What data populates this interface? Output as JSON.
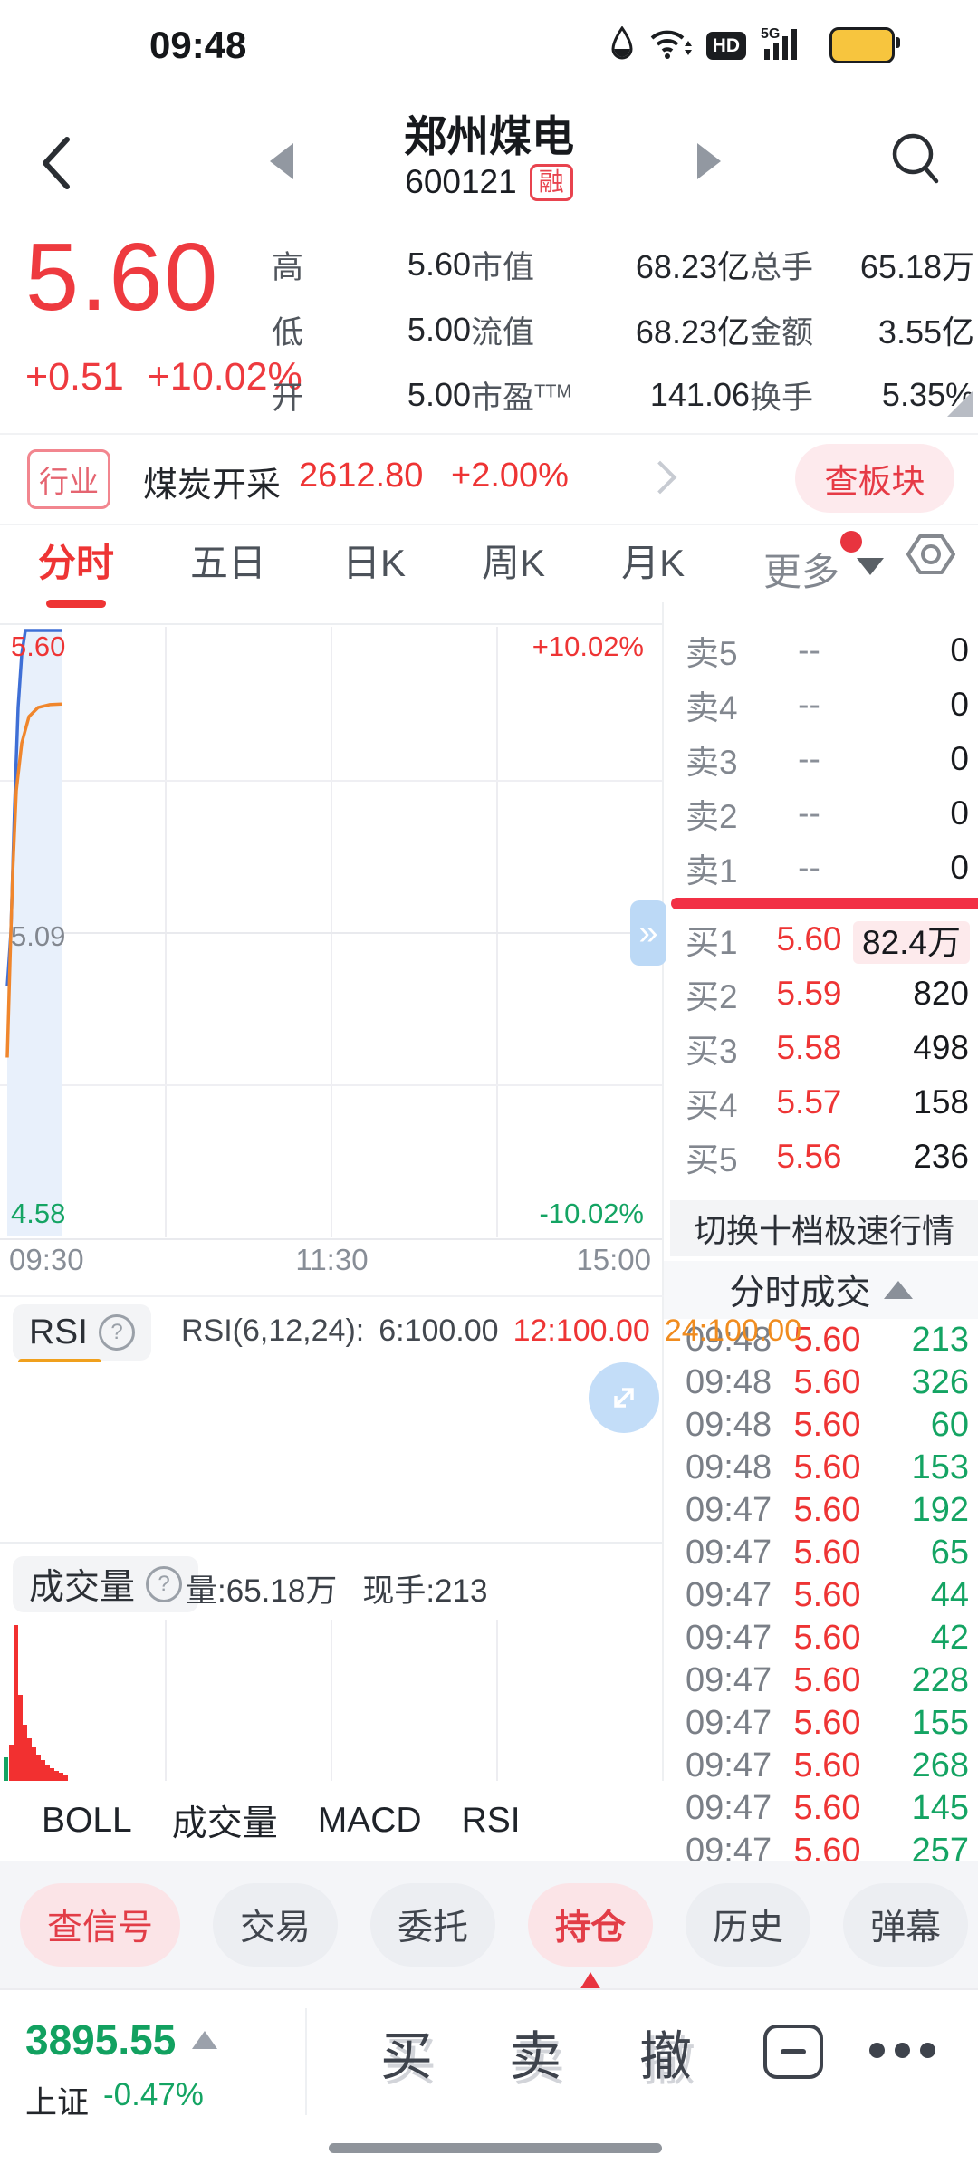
{
  "status_bar": {
    "time": "09:48",
    "icons": [
      "drop-icon",
      "wifi-icon",
      "hd-icon",
      "signal-5g-icon",
      "battery-icon"
    ]
  },
  "header": {
    "title": "郑州煤电",
    "code": "600121",
    "margin_badge": "融"
  },
  "quote": {
    "price": "5.60",
    "change": "+0.51",
    "change_pct": "+10.02%",
    "stats": [
      {
        "label": "高",
        "value": "5.60",
        "vc": "red"
      },
      {
        "label": "市值",
        "value": "68.23亿"
      },
      {
        "label": "总手",
        "value": "65.18万"
      },
      {
        "label": "低",
        "value": "5.00",
        "vc": "green"
      },
      {
        "label": "流值",
        "value": "68.23亿"
      },
      {
        "label": "金额",
        "value": "3.55亿"
      },
      {
        "label": "开",
        "value": "5.00",
        "vc": "green"
      },
      {
        "label": "市盈",
        "sup": "TTM",
        "value": "141.06"
      },
      {
        "label": "换手",
        "value": "5.35%"
      }
    ]
  },
  "industry": {
    "badge": "行业",
    "name": "煤炭开采",
    "value": "2612.80",
    "change_pct": "+2.00%",
    "action": "查板块"
  },
  "period_tabs": {
    "items": [
      {
        "label": "分时",
        "cls": "active"
      },
      {
        "label": "五日"
      },
      {
        "label": "日K"
      },
      {
        "label": "周K"
      },
      {
        "label": "月K"
      }
    ],
    "more": "更多"
  },
  "chart": {
    "y_high_label": "5.60",
    "pct_high": "+10.02%",
    "y_mid_label": "5.09",
    "y_low_label": "4.58",
    "pct_low": "-10.02%",
    "times": [
      "09:30",
      "11:30",
      "15:00"
    ],
    "expand": "»"
  },
  "order_book": {
    "sells": [
      {
        "label": "卖5",
        "price": "--",
        "vol": "0"
      },
      {
        "label": "卖4",
        "price": "--",
        "vol": "0"
      },
      {
        "label": "卖3",
        "price": "--",
        "vol": "0"
      },
      {
        "label": "卖2",
        "price": "--",
        "vol": "0"
      },
      {
        "label": "卖1",
        "price": "--",
        "vol": "0"
      }
    ],
    "buys": [
      {
        "label": "买1",
        "price": "5.60",
        "vol": "82.4万",
        "vc": "hl"
      },
      {
        "label": "买2",
        "price": "5.59",
        "vol": "820"
      },
      {
        "label": "买3",
        "price": "5.58",
        "vol": "498"
      },
      {
        "label": "买4",
        "price": "5.57",
        "vol": "158"
      },
      {
        "label": "买5",
        "price": "5.56",
        "vol": "236"
      }
    ],
    "switch_label": "切换十档极速行情"
  },
  "rsi": {
    "tab": "RSI",
    "help": "?",
    "params": "RSI(6,12,24):",
    "v6": "6:100.00",
    "v12": "12:100.00",
    "v24": "24:100.00"
  },
  "volume_panel": {
    "tab": "成交量",
    "help": "?",
    "info_vol": "量:65.18万",
    "info_now": "现手:213"
  },
  "indicator_tabs": {
    "items": [
      {
        "label": "BOLL"
      },
      {
        "label": "成交量",
        "cls": "orange"
      },
      {
        "label": "MACD"
      },
      {
        "label": "RSI",
        "cls": "orange"
      }
    ]
  },
  "tick_list": {
    "title": "分时成交",
    "rows": [
      {
        "t": "09:48",
        "p": "5.60",
        "v": "213"
      },
      {
        "t": "09:48",
        "p": "5.60",
        "v": "326"
      },
      {
        "t": "09:48",
        "p": "5.60",
        "v": "60"
      },
      {
        "t": "09:48",
        "p": "5.60",
        "v": "153"
      },
      {
        "t": "09:47",
        "p": "5.60",
        "v": "192"
      },
      {
        "t": "09:47",
        "p": "5.60",
        "v": "65"
      },
      {
        "t": "09:47",
        "p": "5.60",
        "v": "44"
      },
      {
        "t": "09:47",
        "p": "5.60",
        "v": "42"
      },
      {
        "t": "09:47",
        "p": "5.60",
        "v": "228"
      },
      {
        "t": "09:47",
        "p": "5.60",
        "v": "155"
      },
      {
        "t": "09:47",
        "p": "5.60",
        "v": "268"
      },
      {
        "t": "09:47",
        "p": "5.60",
        "v": "145"
      },
      {
        "t": "09:47",
        "p": "5.60",
        "v": "257"
      }
    ]
  },
  "bottom_nav": {
    "items": [
      {
        "label": "查信号",
        "cls": "pink"
      },
      {
        "label": "交易"
      },
      {
        "label": "委托"
      },
      {
        "label": "持仓",
        "cls": "pink current"
      },
      {
        "label": "历史"
      },
      {
        "label": "弹幕"
      }
    ]
  },
  "bottom_bar": {
    "index_value": "3895.55",
    "index_name": "上证",
    "index_change": "-0.47%",
    "buy": "买",
    "sell": "卖",
    "cancel": "撤"
  },
  "colors": {
    "red": "#ee3434",
    "green": "#14a463",
    "orange": "#f08c1f",
    "price_line": "#3e6fd6",
    "avg_line": "#f0862c",
    "fill": "#e8f0fb"
  },
  "chart_data": {
    "type": "line",
    "title": "分时 minute chart 600121",
    "x_axis": [
      "09:30",
      "11:30",
      "15:00"
    ],
    "y_high": 5.6,
    "y_mid": 5.09,
    "y_low": 4.58,
    "pct_range": [
      "+10.02%",
      "-10.02%"
    ],
    "open": 5.0,
    "last": 5.6,
    "price_points": [
      [
        8,
        5.0
      ],
      [
        12,
        5.09
      ],
      [
        16,
        5.3
      ],
      [
        20,
        5.47
      ],
      [
        24,
        5.56
      ],
      [
        28,
        5.6
      ],
      [
        68,
        5.6
      ]
    ],
    "avg_points": [
      [
        8,
        4.88
      ],
      [
        11,
        5.04
      ],
      [
        14,
        5.19
      ],
      [
        18,
        5.33
      ],
      [
        24,
        5.41
      ],
      [
        32,
        5.455
      ],
      [
        42,
        5.47
      ],
      [
        55,
        5.475
      ],
      [
        68,
        5.476
      ]
    ],
    "volume_bars": [
      [
        4,
        26,
        "g"
      ],
      [
        10,
        40
      ],
      [
        15,
        172
      ],
      [
        20,
        95
      ],
      [
        25,
        62
      ],
      [
        30,
        47
      ],
      [
        35,
        37
      ],
      [
        40,
        29
      ],
      [
        45,
        23
      ],
      [
        50,
        18
      ],
      [
        55,
        14
      ],
      [
        60,
        11
      ],
      [
        65,
        9
      ],
      [
        70,
        7
      ]
    ],
    "rsi_values": {
      "rsi6": 100.0,
      "rsi12": 100.0,
      "rsi24": 100.0
    },
    "volume_total": "65.18万",
    "volume_now": "213"
  }
}
